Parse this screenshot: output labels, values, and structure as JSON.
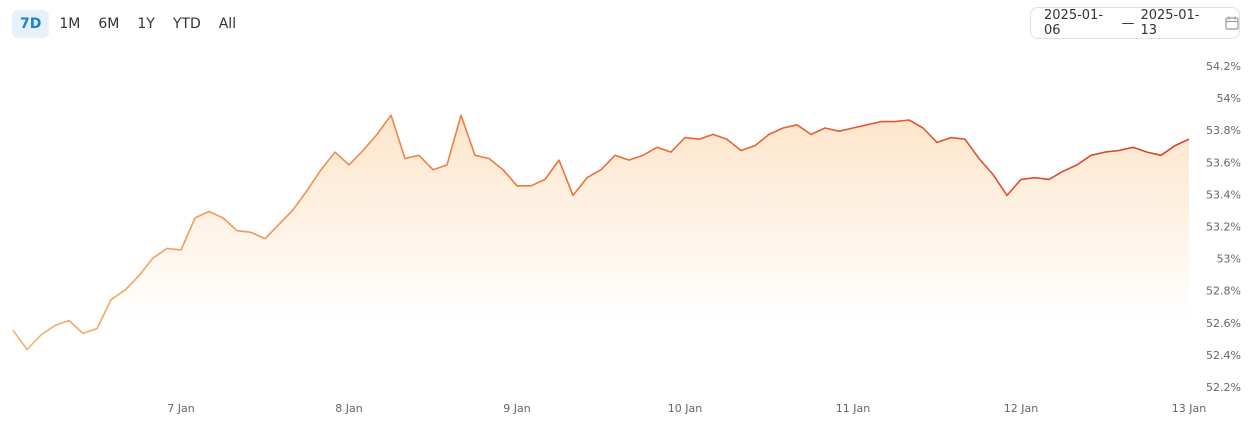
{
  "range_buttons": [
    "7D",
    "1M",
    "6M",
    "1Y",
    "YTD",
    "All"
  ],
  "active_range": "7D",
  "date_from": "2025-01-06",
  "date_separator": "—",
  "date_to": "2025-01-13",
  "chart_data": {
    "type": "area",
    "categories": [
      null,
      null,
      null,
      null,
      null,
      null,
      null,
      null,
      null,
      null,
      null,
      null,
      "7 Jan",
      null,
      null,
      null,
      null,
      null,
      null,
      null,
      null,
      null,
      null,
      null,
      "8 Jan",
      null,
      null,
      null,
      null,
      null,
      null,
      null,
      null,
      null,
      null,
      null,
      "9 Jan",
      null,
      null,
      null,
      null,
      null,
      null,
      null,
      null,
      null,
      null,
      null,
      "10 Jan",
      null,
      null,
      null,
      null,
      null,
      null,
      null,
      null,
      null,
      null,
      null,
      "11 Jan",
      null,
      null,
      null,
      null,
      null,
      null,
      null,
      null,
      null,
      null,
      null,
      "12 Jan",
      null,
      null,
      null,
      null,
      null,
      null,
      null,
      null,
      null,
      null,
      null,
      "13 Jan"
    ],
    "values": [
      52.56,
      52.44,
      52.53,
      52.59,
      52.62,
      52.54,
      52.57,
      52.75,
      52.81,
      52.9,
      53.01,
      53.07,
      53.06,
      53.26,
      53.3,
      53.26,
      53.18,
      53.17,
      53.13,
      53.22,
      53.31,
      53.43,
      53.56,
      53.67,
      53.59,
      53.68,
      53.78,
      53.9,
      53.63,
      53.65,
      53.56,
      53.59,
      53.9,
      53.65,
      53.63,
      53.56,
      53.46,
      53.46,
      53.5,
      53.62,
      53.4,
      53.51,
      53.56,
      53.65,
      53.62,
      53.65,
      53.7,
      53.67,
      53.76,
      53.75,
      53.78,
      53.75,
      53.68,
      53.71,
      53.78,
      53.82,
      53.84,
      53.78,
      53.82,
      53.8,
      53.82,
      53.84,
      53.86,
      53.86,
      53.87,
      53.82,
      53.73,
      53.76,
      53.75,
      53.63,
      53.53,
      53.4,
      53.5,
      53.51,
      53.5,
      53.55,
      53.59,
      53.65,
      53.67,
      53.68,
      53.7,
      53.67,
      53.65,
      53.71,
      53.75
    ],
    "line_gradient": [
      "#f6b068",
      "#e8703a",
      "#d8402a"
    ],
    "fill_color": "#fde2c4",
    "ylim": [
      52.2,
      54.2
    ],
    "yticks": [
      {
        "value": 52.2,
        "label": "52.2%"
      },
      {
        "value": 52.4,
        "label": "52.4%"
      },
      {
        "value": 52.6,
        "label": "52.6%"
      },
      {
        "value": 52.8,
        "label": "52.8%"
      },
      {
        "value": 53,
        "label": "53%"
      },
      {
        "value": 53.2,
        "label": "53.2%"
      },
      {
        "value": 53.4,
        "label": "53.4%"
      },
      {
        "value": 53.6,
        "label": "53.6%"
      },
      {
        "value": 53.8,
        "label": "53.8%"
      },
      {
        "value": 54,
        "label": "54%"
      },
      {
        "value": 54.2,
        "label": "54.2%"
      }
    ],
    "grid": false
  }
}
